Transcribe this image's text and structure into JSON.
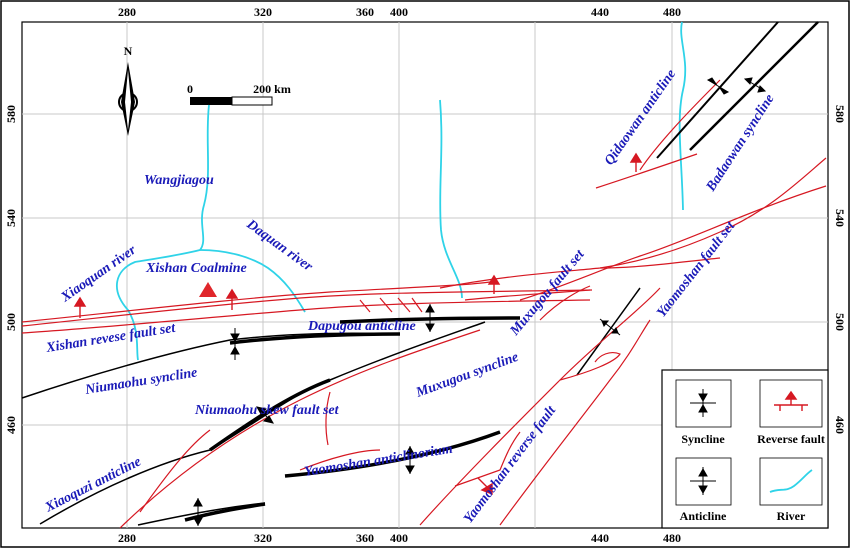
{
  "map": {
    "x_ticks": [
      "280",
      "320",
      "360",
      "400",
      "440",
      "480"
    ],
    "y_ticks": [
      "580",
      "540",
      "500",
      "460"
    ],
    "north": "N",
    "scale": {
      "start": "0",
      "end": "200 km"
    },
    "labels": {
      "wangjiagou": "Wangjiagou",
      "xiaoquan_river": "Xiaoquan river",
      "xishan_coalmine": "Xishan Coalmine",
      "daquan_river": "Daquan river",
      "xishan_fault": "Xishan revese fault set",
      "dapugou": "Dapugou anticline",
      "niumaohu_syncline": "Niumaohu syncline",
      "niumaohu_skew": "Niumaohu skew fault set",
      "xiaoquzi": "Xiaoquzi anticline",
      "yaomoshan_anticlinorium": "Yaomoshan anticlinorium",
      "muxugou_syncline": "Muxugou syncline",
      "muxugou_fault": "Muxugou fault set",
      "yaomoshan_reverse": "Yaomoshan reverse fault",
      "yaomoshan_fault": "Yaomoshan fault set",
      "qidaowan": "Qidaowan anticline",
      "badaowan": "Badaowan syncline"
    },
    "legend": [
      {
        "label": "Syncline",
        "icon": "syncline-symbol"
      },
      {
        "label": "Reverse fault",
        "icon": "reverse-fault-symbol"
      },
      {
        "label": "Anticline",
        "icon": "anticline-symbol"
      },
      {
        "label": "River",
        "icon": "river-symbol"
      }
    ],
    "colors": {
      "fault": "#d61822",
      "river": "#2fd3e8",
      "label": "#1a1ab8",
      "fold": "#000000"
    }
  }
}
